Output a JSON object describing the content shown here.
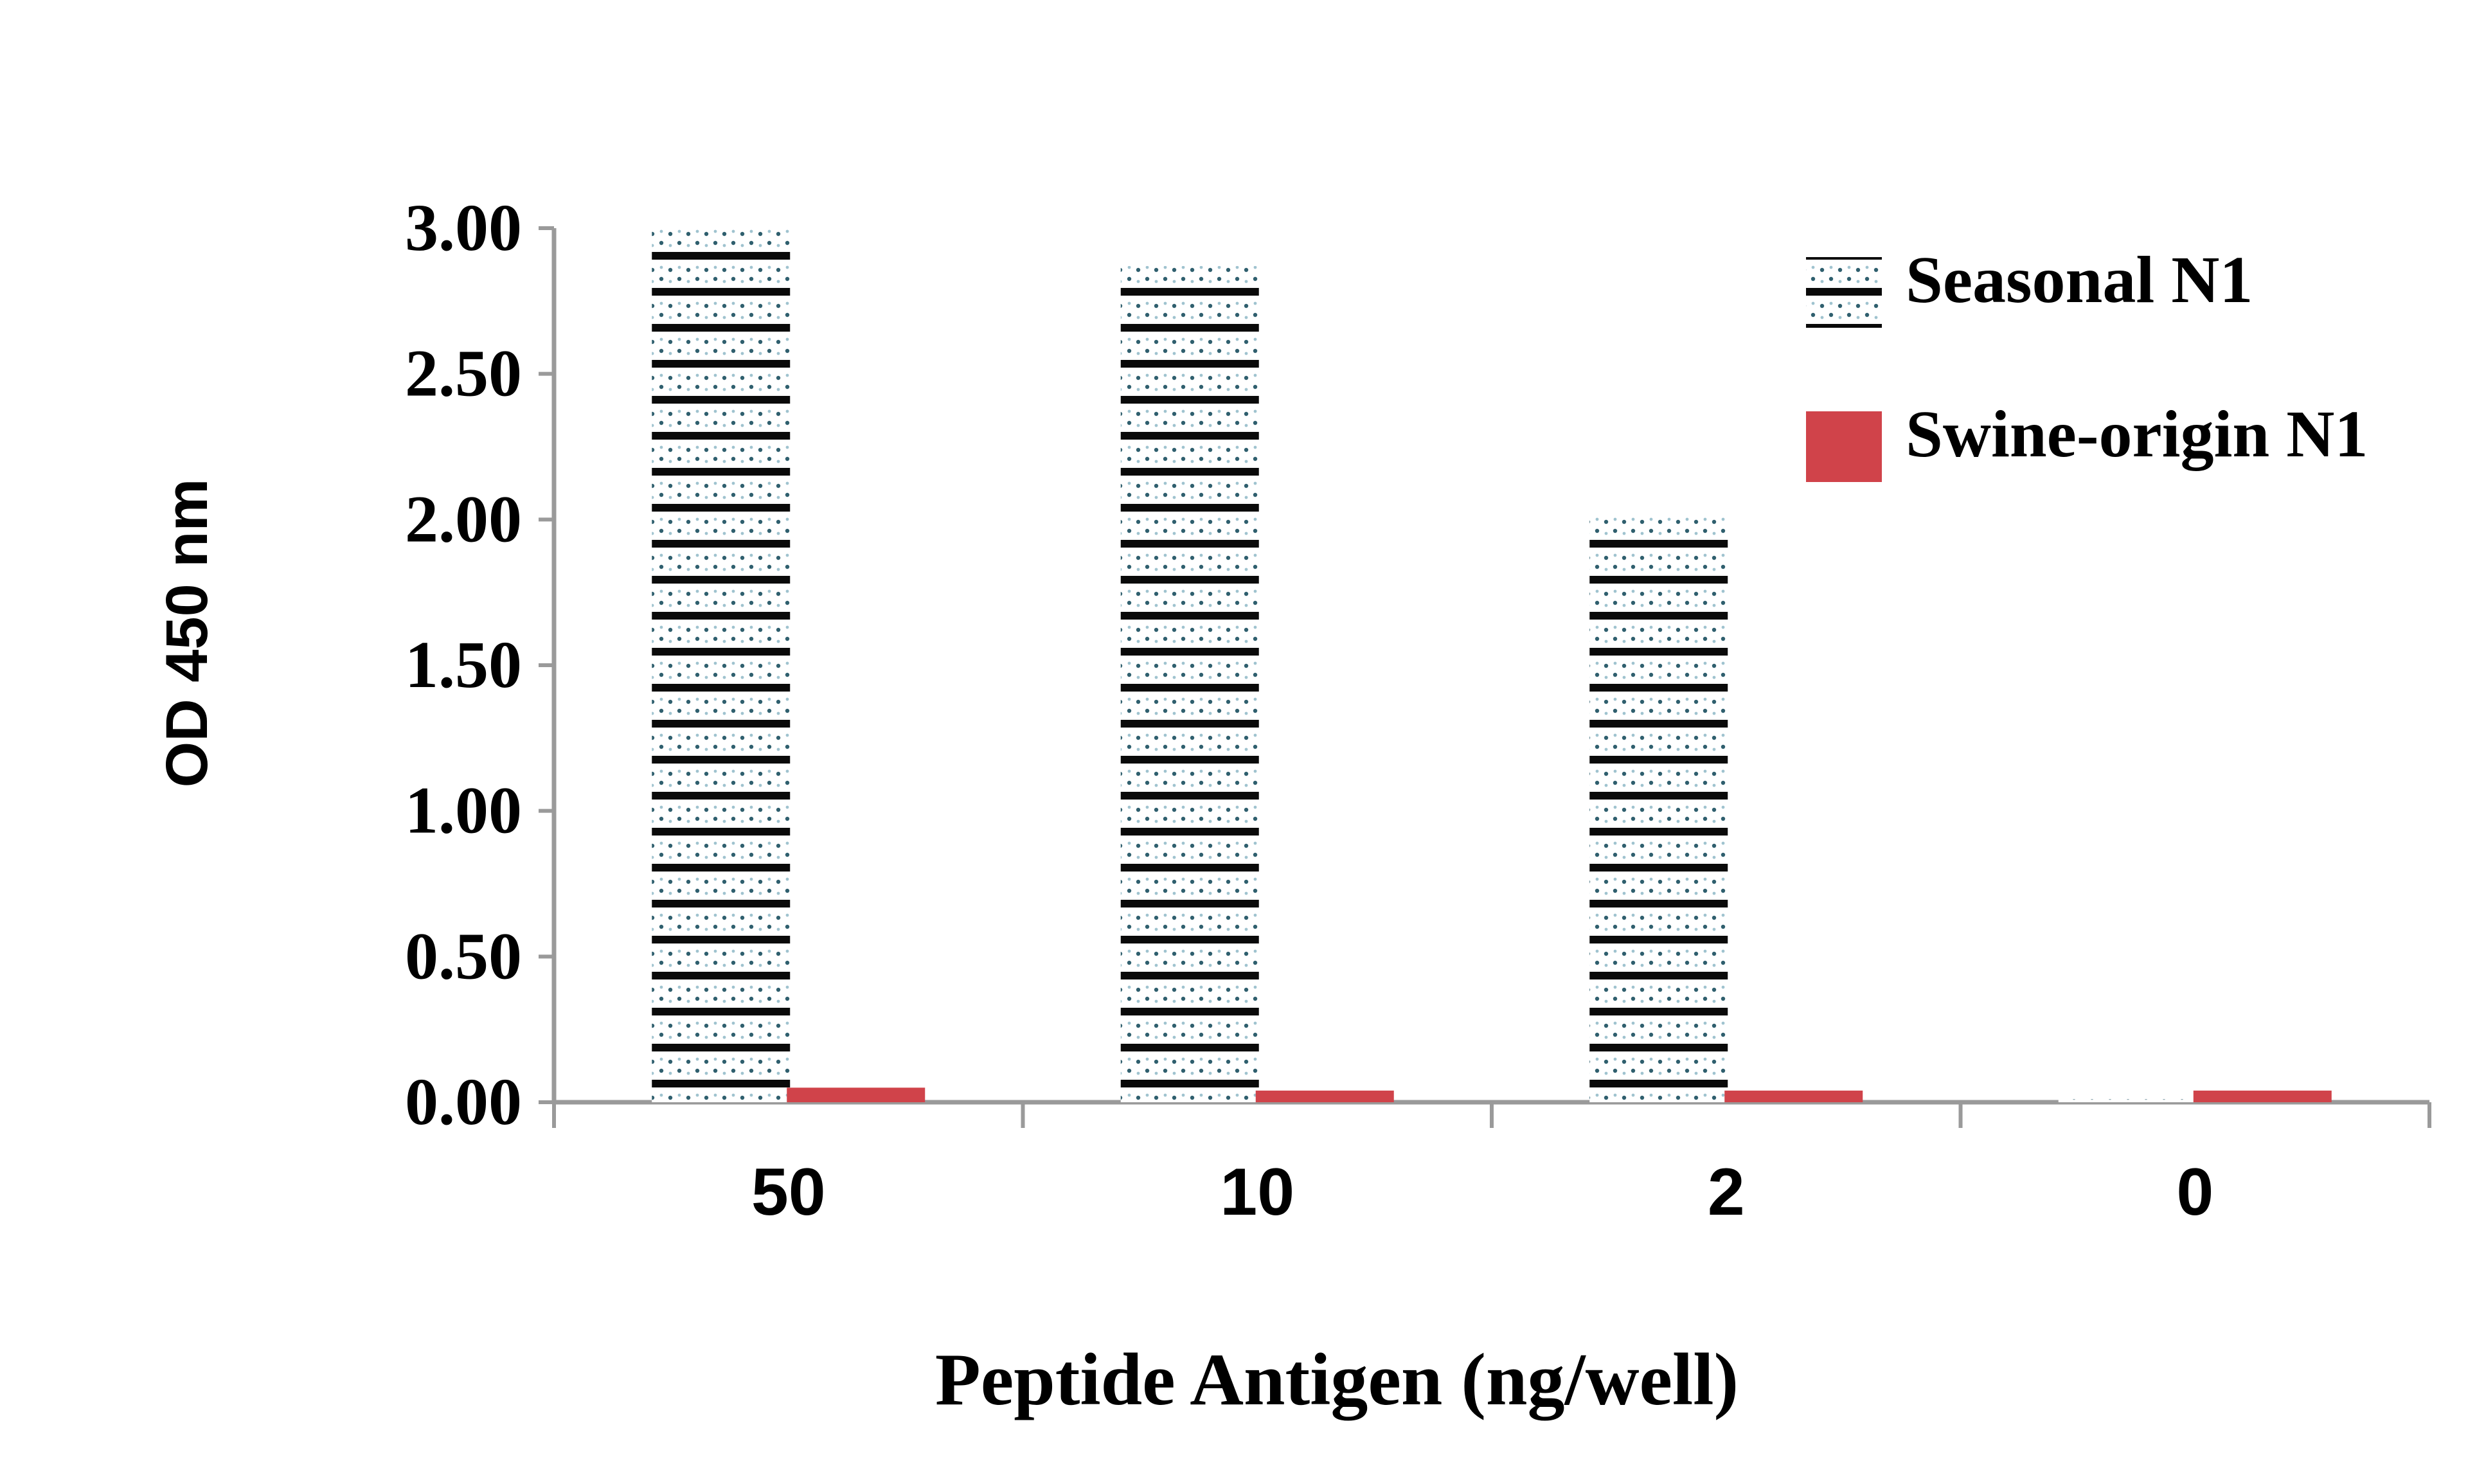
{
  "chart_data": {
    "type": "bar",
    "title": "",
    "xlabel": "Peptide Antigen (ng/well)",
    "ylabel": "OD 450 nm",
    "categories": [
      "50",
      "10",
      "2",
      "0"
    ],
    "ylim": [
      0,
      3.0
    ],
    "yticks": [
      "0.00",
      "0.50",
      "1.00",
      "1.50",
      "2.00",
      "2.50",
      "3.00"
    ],
    "grid": false,
    "legend_position": "top-right",
    "series": [
      {
        "name": "Seasonal N1",
        "values": [
          3.0,
          2.87,
          2.01,
          0.01
        ],
        "color": "#000000",
        "pattern": "horizontal-stripes-dotted"
      },
      {
        "name": "Swine-origin N1",
        "values": [
          0.05,
          0.04,
          0.04,
          0.04
        ],
        "color": "#d0434a",
        "pattern": "solid"
      }
    ]
  }
}
